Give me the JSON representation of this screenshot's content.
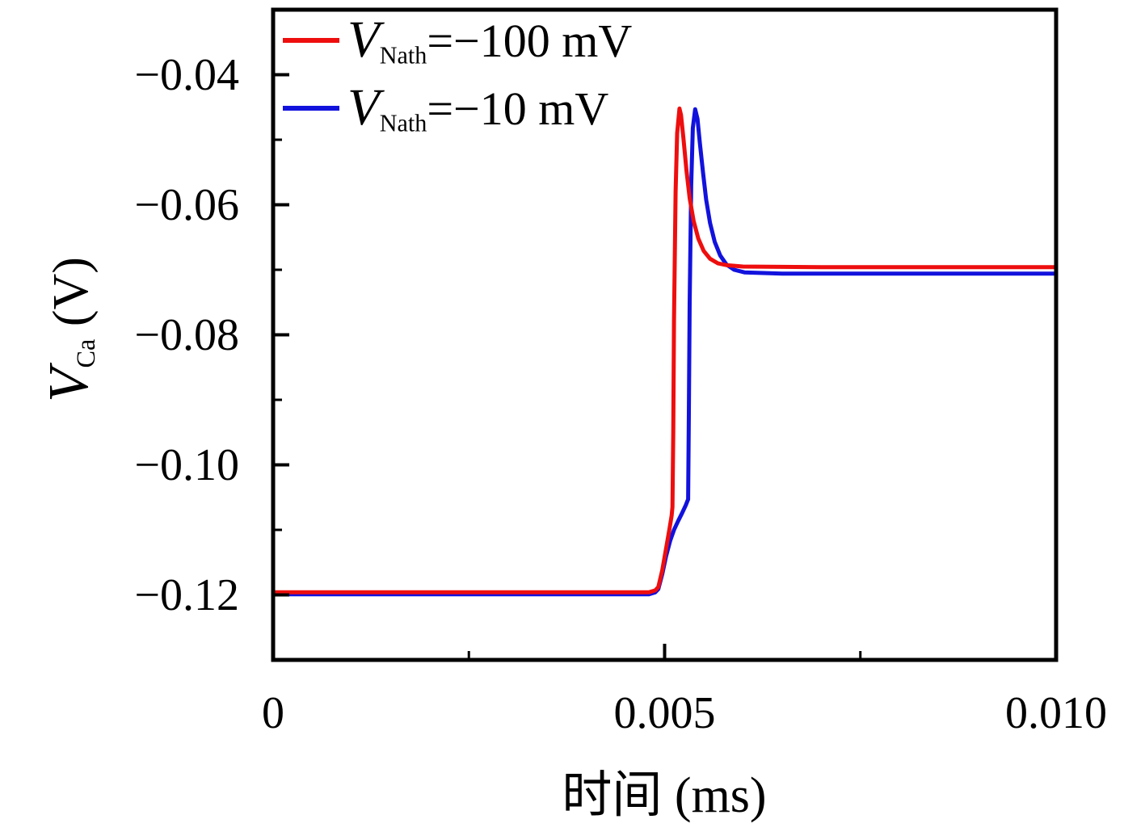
{
  "axes": {
    "x": {
      "label": "时间 (ms)"
    },
    "y": {
      "label": {
        "var": "V",
        "sub": "Ca",
        "rest": " (V)"
      }
    }
  },
  "legend": {
    "items": [
      {
        "var": "V",
        "sub": "Nath",
        "rest": "=−100 mV",
        "color": "#ee0e0e"
      },
      {
        "var": "V",
        "sub": "Nath",
        "rest": "=−10 mV",
        "color": "#1212dd"
      }
    ]
  },
  "chart_data": {
    "type": "line",
    "title": "",
    "xlabel": "时间 (ms)",
    "ylabel": "V_Ca (V)",
    "xlim": [
      0,
      0.01
    ],
    "ylim": [
      -0.13,
      -0.03
    ],
    "grid": false,
    "legend_position": "upper-left",
    "x_ticks": [
      0,
      0.005,
      0.01
    ],
    "x_tick_labels": [
      "0",
      "0.005",
      "0.010"
    ],
    "x_minor_ticks": [
      0.0025,
      0.0075
    ],
    "y_ticks": [
      -0.04,
      -0.06,
      -0.08,
      -0.1,
      -0.12
    ],
    "y_tick_labels": [
      "−0.04",
      "−0.06",
      "−0.08",
      "−0.10",
      "−0.12"
    ],
    "y_minor_ticks": [
      -0.05,
      -0.07,
      -0.09,
      -0.11
    ],
    "axis_color": "#000000",
    "series": [
      {
        "name": "V_Nath = −10 mV",
        "color": "#1212dd",
        "points": [
          [
            0.0,
            -0.1199
          ],
          [
            0.0048,
            -0.1199
          ],
          [
            0.00488,
            -0.1196
          ],
          [
            0.00492,
            -0.1191
          ],
          [
            0.00497,
            -0.1168
          ],
          [
            0.00502,
            -0.114
          ],
          [
            0.00507,
            -0.1117
          ],
          [
            0.00512,
            -0.11
          ],
          [
            0.00517,
            -0.1087
          ],
          [
            0.00522,
            -0.1075
          ],
          [
            0.00527,
            -0.1062
          ],
          [
            0.00529,
            -0.1056
          ],
          [
            0.0053,
            -0.1053
          ],
          [
            0.00531,
            -0.092
          ],
          [
            0.00532,
            -0.075
          ],
          [
            0.00534,
            -0.057
          ],
          [
            0.00536,
            -0.0482
          ],
          [
            0.00539,
            -0.0453
          ],
          [
            0.00542,
            -0.0468
          ],
          [
            0.00545,
            -0.0505
          ],
          [
            0.00549,
            -0.055
          ],
          [
            0.00553,
            -0.0592
          ],
          [
            0.00558,
            -0.0628
          ],
          [
            0.00564,
            -0.0657
          ],
          [
            0.00571,
            -0.0678
          ],
          [
            0.00579,
            -0.0692
          ],
          [
            0.00589,
            -0.07
          ],
          [
            0.00602,
            -0.0704
          ],
          [
            0.0065,
            -0.0706
          ],
          [
            0.01,
            -0.0706
          ]
        ]
      },
      {
        "name": "V_Nath = −100 mV",
        "color": "#ee0e0e",
        "points": [
          [
            0.0,
            -0.1196
          ],
          [
            0.0048,
            -0.1196
          ],
          [
            0.00488,
            -0.1193
          ],
          [
            0.00492,
            -0.1188
          ],
          [
            0.00497,
            -0.1162
          ],
          [
            0.00502,
            -0.1128
          ],
          [
            0.00506,
            -0.11
          ],
          [
            0.00509,
            -0.1078
          ],
          [
            0.0051,
            -0.1065
          ],
          [
            0.00511,
            -0.095
          ],
          [
            0.00512,
            -0.078
          ],
          [
            0.00514,
            -0.058
          ],
          [
            0.00516,
            -0.049
          ],
          [
            0.00519,
            -0.0452
          ],
          [
            0.00521,
            -0.0462
          ],
          [
            0.00524,
            -0.0498
          ],
          [
            0.00528,
            -0.0548
          ],
          [
            0.00532,
            -0.059
          ],
          [
            0.00537,
            -0.0625
          ],
          [
            0.00543,
            -0.0652
          ],
          [
            0.0055,
            -0.0671
          ],
          [
            0.00558,
            -0.0683
          ],
          [
            0.00568,
            -0.069
          ],
          [
            0.0058,
            -0.0693
          ],
          [
            0.006,
            -0.0695
          ],
          [
            0.007,
            -0.0696
          ],
          [
            0.01,
            -0.0696
          ]
        ]
      }
    ]
  }
}
